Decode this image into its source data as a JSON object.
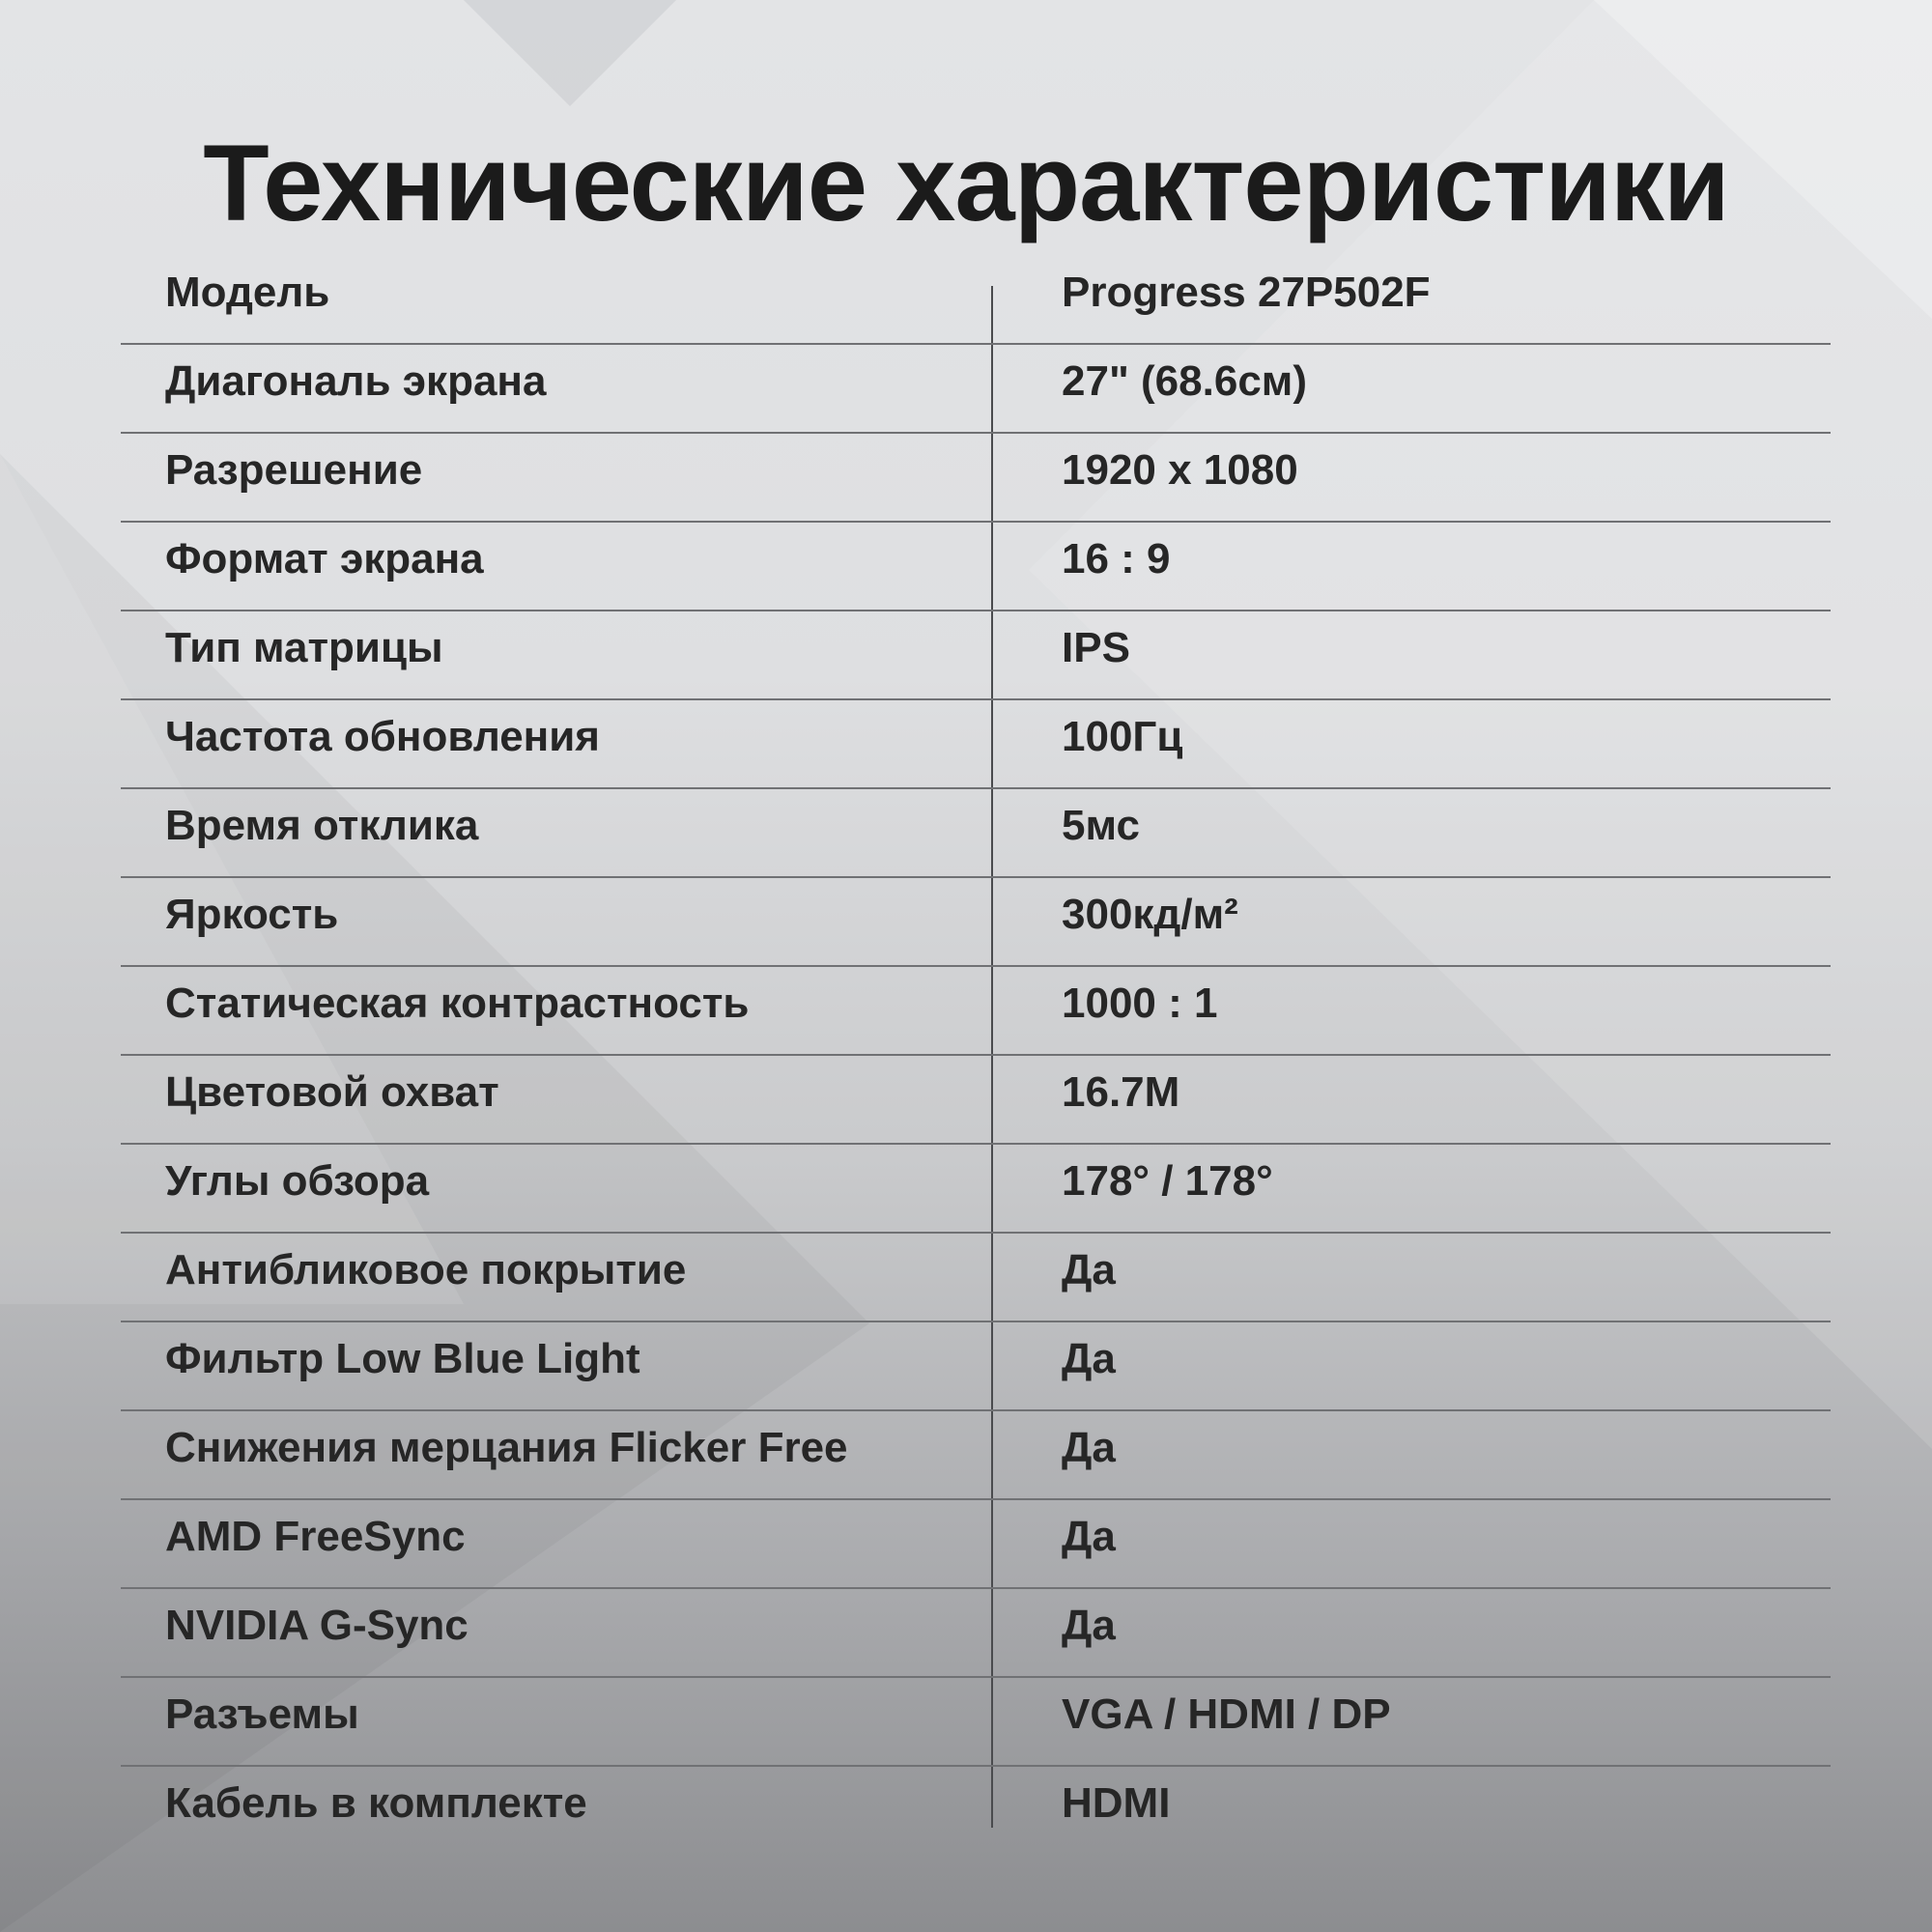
{
  "title": "Технические характеристики",
  "specs": [
    {
      "label": "Модель",
      "value": "Progress 27P502F"
    },
    {
      "label": "Диагональ экрана",
      "value": "27\" (68.6см)"
    },
    {
      "label": "Разрешение",
      "value": "1920 x 1080"
    },
    {
      "label": "Формат экрана",
      "value": "16 : 9"
    },
    {
      "label": "Тип матрицы",
      "value": "IPS"
    },
    {
      "label": "Частота обновления",
      "value": "100Гц"
    },
    {
      "label": "Время отклика",
      "value": "5мс"
    },
    {
      "label": "Яркость",
      "value": "300кд/м²"
    },
    {
      "label": "Статическая контрастность",
      "value": "1000 : 1"
    },
    {
      "label": "Цветовой охват",
      "value": "16.7M"
    },
    {
      "label": "Углы обзора",
      "value": "178° / 178°"
    },
    {
      "label": "Антибликовое покрытие",
      "value": "Да"
    },
    {
      "label": "Фильтр Low Blue Light",
      "value": "Да"
    },
    {
      "label": "Снижения мерцания Flicker Free",
      "value": "Да"
    },
    {
      "label": "AMD FreeSync",
      "value": "Да"
    },
    {
      "label": "NVIDIA G-Sync",
      "value": "Да"
    },
    {
      "label": "Разъемы",
      "value": "VGA / HDMI / DP"
    },
    {
      "label": "Кабель в комплекте",
      "value": "HDMI"
    }
  ]
}
